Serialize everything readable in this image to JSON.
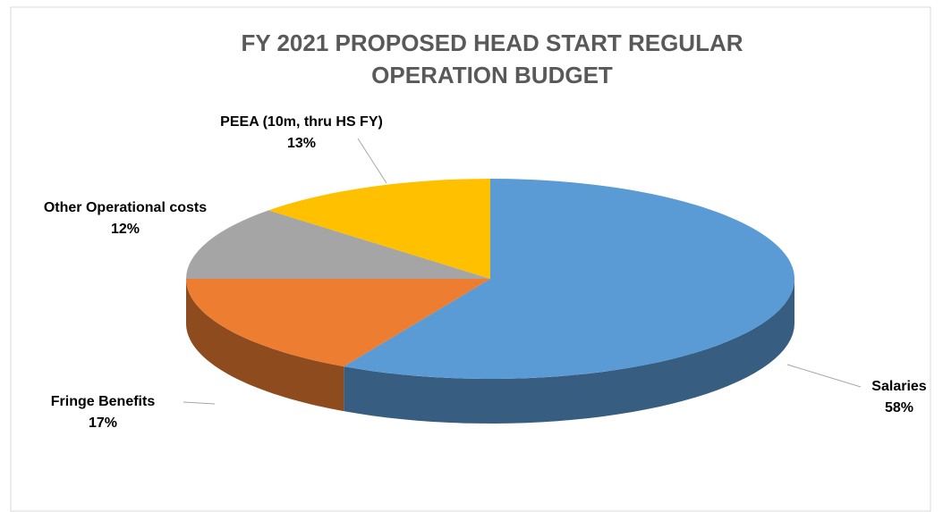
{
  "chart_data": {
    "type": "pie3d",
    "title": "FY 2021 PROPOSED HEAD START REGULAR OPERATION BUDGET",
    "categories": [
      "Salaries",
      "Fringe Benefits",
      "Other Operational costs",
      "PEEA (10m, thru HS FY)"
    ],
    "values": [
      58,
      17,
      12,
      13
    ],
    "value_labels": [
      "58%",
      "17%",
      "12%",
      "13%"
    ],
    "colors": [
      "#5b9bd5",
      "#ed7d31",
      "#a5a5a5",
      "#ffc000"
    ]
  }
}
